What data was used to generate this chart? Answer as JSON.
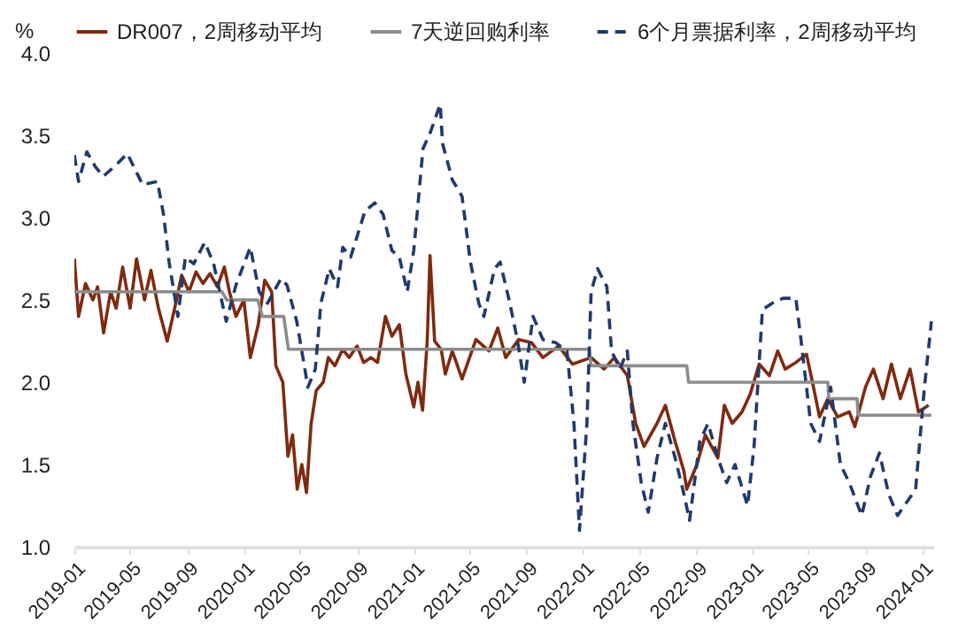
{
  "chart_data": {
    "type": "line",
    "ylabel": "%",
    "ylim": [
      1.0,
      4.0
    ],
    "yticks": [
      {
        "value": 1,
        "label": "1.0"
      },
      {
        "value": 1.5,
        "label": "1.5"
      },
      {
        "value": 2,
        "label": "2.0"
      },
      {
        "value": 2.5,
        "label": "2.5"
      },
      {
        "value": 3,
        "label": "3.0"
      },
      {
        "value": 3.5,
        "label": "3.5"
      },
      {
        "value": 4,
        "label": "4.0"
      }
    ],
    "xlim": [
      "2019-01-01",
      "2024-01-25"
    ],
    "xticks": [
      "2019-01",
      "2019-05",
      "2019-09",
      "2020-01",
      "2020-05",
      "2020-09",
      "2021-01",
      "2021-05",
      "2021-09",
      "2022-01",
      "2022-05",
      "2022-09",
      "2023-01",
      "2023-05",
      "2023-09",
      "2024-01"
    ],
    "legend": "top",
    "grid": false,
    "series": [
      {
        "name": "DR007，2周移动平均",
        "color": "#7f2a10",
        "line_style": "solid",
        "x": [
          "2019-01-01",
          "2019-01-10",
          "2019-01-25",
          "2019-02-10",
          "2019-02-20",
          "2019-03-05",
          "2019-03-20",
          "2019-04-01",
          "2019-04-15",
          "2019-05-01",
          "2019-05-15",
          "2019-06-01",
          "2019-06-15",
          "2019-07-01",
          "2019-07-20",
          "2019-08-05",
          "2019-08-20",
          "2019-09-05",
          "2019-09-20",
          "2019-10-05",
          "2019-10-20",
          "2019-11-05",
          "2019-11-20",
          "2019-12-01",
          "2019-12-15",
          "2020-01-01",
          "2020-01-15",
          "2020-02-01",
          "2020-02-15",
          "2020-03-01",
          "2020-03-10",
          "2020-03-25",
          "2020-04-05",
          "2020-04-15",
          "2020-04-25",
          "2020-05-05",
          "2020-05-15",
          "2020-05-25",
          "2020-06-05",
          "2020-06-20",
          "2020-07-01",
          "2020-07-15",
          "2020-08-01",
          "2020-08-15",
          "2020-09-01",
          "2020-09-15",
          "2020-10-01",
          "2020-10-15",
          "2020-11-01",
          "2020-11-15",
          "2020-12-01",
          "2020-12-15",
          "2021-01-01",
          "2021-01-10",
          "2021-01-20",
          "2021-01-30",
          "2021-02-05",
          "2021-02-15",
          "2021-03-01",
          "2021-03-10",
          "2021-03-25",
          "2021-04-15",
          "2021-05-15",
          "2021-06-12",
          "2021-07-01",
          "2021-07-18",
          "2021-08-15",
          "2021-09-12",
          "2021-10-06",
          "2021-11-09",
          "2021-12-09",
          "2022-01-18",
          "2022-02-15",
          "2022-03-09",
          "2022-04-06",
          "2022-04-24",
          "2022-05-12",
          "2022-06-09",
          "2022-06-27",
          "2022-07-18",
          "2022-08-06",
          "2022-08-12",
          "2022-09-03",
          "2022-09-21",
          "2022-10-18",
          "2022-11-01",
          "2022-11-18",
          "2022-12-09",
          "2022-12-27",
          "2023-01-15",
          "2023-02-06",
          "2023-02-24",
          "2023-03-12",
          "2023-04-04",
          "2023-04-27",
          "2023-05-12",
          "2023-05-25",
          "2023-06-12",
          "2023-07-03",
          "2023-07-28",
          "2023-08-09",
          "2023-09-01",
          "2023-09-18",
          "2023-10-09",
          "2023-10-27",
          "2023-11-15",
          "2023-12-06",
          "2023-12-24",
          "2024-01-15"
        ],
        "values": [
          2.75,
          2.4,
          2.6,
          2.5,
          2.58,
          2.3,
          2.55,
          2.45,
          2.7,
          2.45,
          2.75,
          2.5,
          2.68,
          2.45,
          2.25,
          2.45,
          2.65,
          2.55,
          2.67,
          2.6,
          2.66,
          2.58,
          2.7,
          2.55,
          2.4,
          2.5,
          2.15,
          2.35,
          2.62,
          2.55,
          2.1,
          2.0,
          1.55,
          1.68,
          1.35,
          1.5,
          1.33,
          1.75,
          1.95,
          2.0,
          2.15,
          2.1,
          2.2,
          2.15,
          2.22,
          2.12,
          2.15,
          2.12,
          2.4,
          2.28,
          2.35,
          2.05,
          1.85,
          2.0,
          1.83,
          2.25,
          2.77,
          2.25,
          2.2,
          2.05,
          2.19,
          2.02,
          2.26,
          2.19,
          2.33,
          2.15,
          2.26,
          2.24,
          2.15,
          2.22,
          2.11,
          2.15,
          2.08,
          2.15,
          2.04,
          1.75,
          1.61,
          1.75,
          1.86,
          1.64,
          1.46,
          1.35,
          1.5,
          1.68,
          1.54,
          1.86,
          1.75,
          1.82,
          1.93,
          2.11,
          2.04,
          2.19,
          2.08,
          2.12,
          2.17,
          1.97,
          1.79,
          1.9,
          1.79,
          1.82,
          1.73,
          1.97,
          2.08,
          1.9,
          2.11,
          1.9,
          2.08,
          1.82,
          1.86
        ]
      },
      {
        "name": "7天逆回购利率",
        "color": "#8c8c8c",
        "line_style": "solid",
        "x": [
          "2019-01-01",
          "2019-11-15",
          "2019-11-25",
          "2020-01-31",
          "2020-02-10",
          "2020-03-27",
          "2020-04-06",
          "2022-01-14",
          "2022-01-18",
          "2022-08-12",
          "2022-08-16",
          "2023-06-12",
          "2023-06-14",
          "2023-08-14",
          "2023-08-16",
          "2024-01-21"
        ],
        "values": [
          2.55,
          2.55,
          2.5,
          2.5,
          2.4,
          2.4,
          2.2,
          2.2,
          2.1,
          2.1,
          2.0,
          2.0,
          1.9,
          1.9,
          1.8,
          1.8
        ]
      },
      {
        "name": "6个月票据利率，2周移动平均",
        "color": "#1f3a6e",
        "line_style": "dashed",
        "x": [
          "2019-01-01",
          "2019-01-10",
          "2019-01-28",
          "2019-02-15",
          "2019-03-04",
          "2019-04-01",
          "2019-04-25",
          "2019-05-28",
          "2019-06-29",
          "2019-07-12",
          "2019-07-24",
          "2019-08-12",
          "2019-08-28",
          "2019-09-15",
          "2019-10-09",
          "2019-10-28",
          "2019-11-24",
          "2019-12-15",
          "2020-01-15",
          "2020-02-03",
          "2020-02-21",
          "2020-03-21",
          "2020-04-03",
          "2020-04-24",
          "2020-05-18",
          "2020-06-03",
          "2020-06-15",
          "2020-07-03",
          "2020-07-21",
          "2020-08-01",
          "2020-08-18",
          "2020-09-18",
          "2020-10-09",
          "2020-10-27",
          "2020-11-15",
          "2020-12-01",
          "2020-12-18",
          "2021-01-01",
          "2021-01-21",
          "2021-02-06",
          "2021-02-27",
          "2021-03-04",
          "2021-03-25",
          "2021-04-15",
          "2021-05-03",
          "2021-05-21",
          "2021-06-01",
          "2021-06-24",
          "2021-07-06",
          "2021-07-27",
          "2021-08-12",
          "2021-08-27",
          "2021-09-15",
          "2021-10-06",
          "2021-11-03",
          "2021-11-27",
          "2021-12-12",
          "2021-12-24",
          "2022-01-09",
          "2022-01-18",
          "2022-02-01",
          "2022-02-21",
          "2022-03-03",
          "2022-03-21",
          "2022-04-06",
          "2022-04-18",
          "2022-05-06",
          "2022-05-21",
          "2022-06-09",
          "2022-06-27",
          "2022-07-18",
          "2022-08-06",
          "2022-08-18",
          "2022-09-09",
          "2022-09-27",
          "2022-10-18",
          "2022-11-06",
          "2022-11-24",
          "2022-12-21",
          "2023-01-04",
          "2023-01-22",
          "2023-02-12",
          "2023-03-07",
          "2023-04-04",
          "2023-04-15",
          "2023-05-06",
          "2023-05-25",
          "2023-06-18",
          "2023-07-09",
          "2023-07-28",
          "2023-08-24",
          "2023-09-12",
          "2023-10-01",
          "2023-10-21",
          "2023-11-09",
          "2023-12-01",
          "2023-12-18",
          "2024-01-06",
          "2024-01-21"
        ],
        "values": [
          3.38,
          3.22,
          3.4,
          3.31,
          3.25,
          3.32,
          3.39,
          3.2,
          3.22,
          3.02,
          2.73,
          2.4,
          2.76,
          2.72,
          2.85,
          2.72,
          2.37,
          2.59,
          2.82,
          2.55,
          2.48,
          2.63,
          2.59,
          2.37,
          1.97,
          2.08,
          2.48,
          2.69,
          2.58,
          2.82,
          2.76,
          3.04,
          3.09,
          3.02,
          2.8,
          2.76,
          2.55,
          2.8,
          3.42,
          3.52,
          3.69,
          3.45,
          3.23,
          3.13,
          2.73,
          2.48,
          2.4,
          2.69,
          2.73,
          2.48,
          2.26,
          2.0,
          2.4,
          2.26,
          2.24,
          2.19,
          1.75,
          1.1,
          1.75,
          2.55,
          2.69,
          2.58,
          2.19,
          2.08,
          2.19,
          1.75,
          1.39,
          1.21,
          1.54,
          1.75,
          1.54,
          1.32,
          1.16,
          1.64,
          1.75,
          1.54,
          1.39,
          1.5,
          1.25,
          1.61,
          2.44,
          2.48,
          2.51,
          2.51,
          2.26,
          1.75,
          1.64,
          1.97,
          1.5,
          1.39,
          1.19,
          1.43,
          1.57,
          1.32,
          1.19,
          1.28,
          1.35,
          1.97,
          2.37
        ]
      }
    ]
  }
}
